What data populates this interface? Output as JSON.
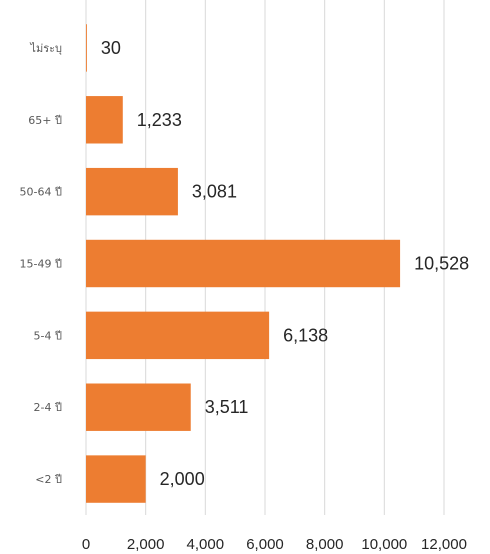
{
  "chart_data": {
    "type": "bar",
    "orientation": "horizontal",
    "categories": [
      "ไม่ระบุ",
      "65+ ปี",
      "50-64 ปี",
      "15-49 ปี",
      "5-4 ปี",
      "2-4 ปี",
      "<2 ปี"
    ],
    "values": [
      30,
      1233,
      3081,
      10528,
      6138,
      3511,
      2000
    ],
    "data_labels": [
      "30",
      "1,233",
      "3,081",
      "10,528",
      "6,138",
      "3,511",
      "2,000"
    ],
    "xlim": [
      0,
      12000
    ],
    "xticks": [
      0,
      2000,
      4000,
      6000,
      8000,
      10000,
      12000
    ],
    "xtick_labels": [
      "0",
      "2,000",
      "4,000",
      "6,000",
      "8,000",
      "10,000",
      "12,000"
    ],
    "bar_color": "#ED7D31",
    "grid": "vertical",
    "legend": "none"
  }
}
